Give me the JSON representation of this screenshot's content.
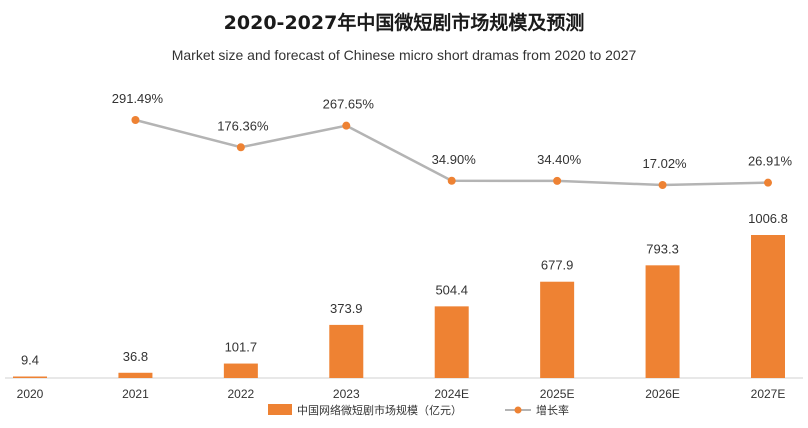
{
  "chart_data": {
    "type": "bar+line",
    "title": "2020-2027年中国微短剧市场规模及预测",
    "subtitle": "Market size and forecast of Chinese micro short dramas from 2020 to 2027",
    "categories": [
      "2020",
      "2021",
      "2022",
      "2023",
      "2024E",
      "2025E",
      "2026E",
      "2027E"
    ],
    "bar_series": {
      "name": "中国网络微短剧市场规模（亿元）",
      "values": [
        9.4,
        36.8,
        101.7,
        373.9,
        504.4,
        677.9,
        793.3,
        1006.8
      ],
      "labels": [
        "9.4",
        "36.8",
        "101.7",
        "373.9",
        "504.4",
        "677.9",
        "793.3",
        "1006.8"
      ],
      "color": "#ee8233"
    },
    "line_series": {
      "name": "增长率",
      "values": [
        null,
        291.49,
        176.36,
        267.65,
        34.9,
        34.4,
        17.02,
        26.91
      ],
      "labels": [
        null,
        "291.49%",
        "176.36%",
        "267.65%",
        "34.90%",
        "34.40%",
        "17.02%",
        "26.91%"
      ],
      "line_color": "#b4b4b4",
      "marker_color": "#ee8233"
    },
    "legend_position": "bottom-center",
    "grid": false
  }
}
